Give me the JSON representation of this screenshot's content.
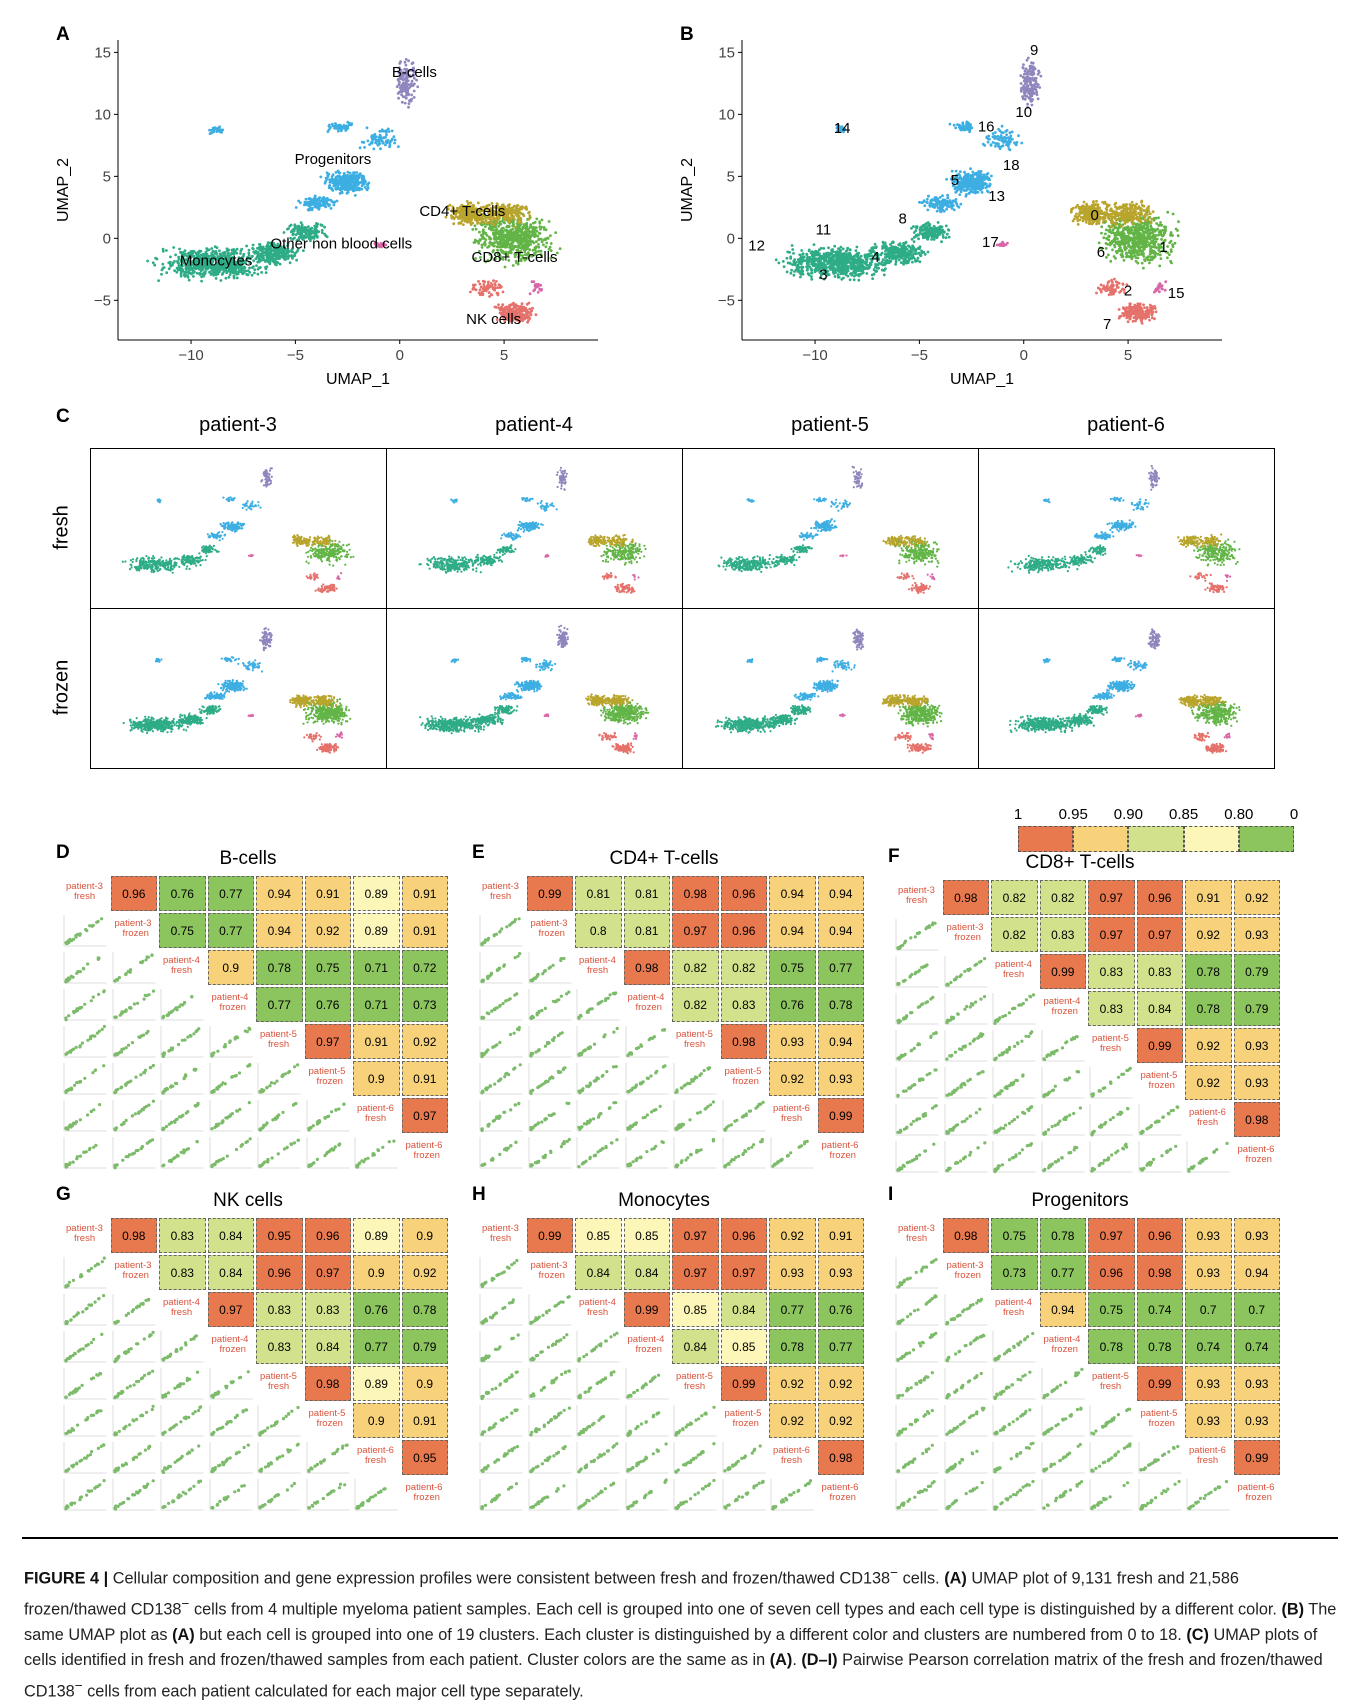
{
  "panel_a": {
    "letter": "A",
    "xlabel": "UMAP_1",
    "ylabel": "UMAP_2",
    "xticks": [
      "−10",
      "−5",
      "0",
      "5"
    ],
    "yticks": [
      "15",
      "10",
      "5",
      "0",
      "−5"
    ],
    "labels": [
      "B-cells",
      "Progenitors",
      "CD4+ T-cells",
      "Other non blood cells",
      "CD8+ T-cells",
      "Monocytes",
      "NK cells"
    ]
  },
  "panel_b": {
    "letter": "B",
    "xlabel": "UMAP_1",
    "ylabel": "UMAP_2",
    "xticks": [
      "−10",
      "−5",
      "0",
      "5"
    ],
    "yticks": [
      "15",
      "10",
      "5",
      "0",
      "−5"
    ],
    "clusters": [
      "0",
      "1",
      "2",
      "3",
      "4",
      "5",
      "6",
      "7",
      "8",
      "9",
      "10",
      "11",
      "12",
      "13",
      "14",
      "15",
      "16",
      "17",
      "18"
    ]
  },
  "panel_c": {
    "letter": "C",
    "patients": [
      "patient-3",
      "patient-4",
      "patient-5",
      "patient-6"
    ],
    "rows": [
      "fresh",
      "frozen"
    ]
  },
  "legend": {
    "labels": [
      "1",
      "0.95",
      "0.90",
      "0.85",
      "0.80",
      "0"
    ],
    "colors": [
      "#e8794f",
      "#f7d27a",
      "#d2e28c",
      "#fcf6b9",
      "#8cc45e"
    ]
  },
  "colors": {
    "bcell": "#8f86bd",
    "progenitor": "#3daee2",
    "cd4": "#b9a42c",
    "cd8": "#62b446",
    "monocyte": "#2eac87",
    "nk": "#e5716b",
    "other": "#d966a8",
    "scatter": "#7cbb6a"
  },
  "corr_panels": [
    {
      "letter": "D",
      "title": "B-cells",
      "values": [
        [
          0.96,
          0.76,
          0.77,
          0.94,
          0.91,
          0.89,
          0.91
        ],
        [
          0.75,
          0.77,
          0.94,
          0.92,
          0.89,
          0.91
        ],
        [
          0.9,
          0.78,
          0.75,
          0.71,
          0.72
        ],
        [
          0.77,
          0.76,
          0.71,
          0.73
        ],
        [
          0.97,
          0.91,
          0.92
        ],
        [
          0.9,
          0.91
        ],
        [
          0.97
        ]
      ]
    },
    {
      "letter": "E",
      "title": "CD4+ T-cells",
      "values": [
        [
          0.99,
          0.81,
          0.81,
          0.98,
          0.96,
          0.94,
          0.94
        ],
        [
          0.8,
          0.81,
          0.97,
          0.96,
          0.94,
          0.94
        ],
        [
          0.98,
          0.82,
          0.82,
          0.75,
          0.77
        ],
        [
          0.82,
          0.83,
          0.76,
          0.78
        ],
        [
          0.98,
          0.93,
          0.94
        ],
        [
          0.92,
          0.93
        ],
        [
          0.99
        ]
      ]
    },
    {
      "letter": "F",
      "title": "CD8+ T-cells",
      "values": [
        [
          0.98,
          0.82,
          0.82,
          0.97,
          0.96,
          0.91,
          0.92
        ],
        [
          0.82,
          0.83,
          0.97,
          0.97,
          0.92,
          0.93
        ],
        [
          0.99,
          0.83,
          0.83,
          0.78,
          0.79
        ],
        [
          0.83,
          0.84,
          0.78,
          0.79
        ],
        [
          0.99,
          0.92,
          0.93
        ],
        [
          0.92,
          0.93
        ],
        [
          0.98
        ]
      ]
    },
    {
      "letter": "G",
      "title": "NK cells",
      "values": [
        [
          0.98,
          0.83,
          0.84,
          0.95,
          0.96,
          0.89,
          0.9
        ],
        [
          0.83,
          0.84,
          0.96,
          0.97,
          0.9,
          0.92
        ],
        [
          0.97,
          0.83,
          0.83,
          0.76,
          0.78
        ],
        [
          0.83,
          0.84,
          0.77,
          0.79
        ],
        [
          0.98,
          0.89,
          0.9
        ],
        [
          0.9,
          0.91
        ],
        [
          0.95
        ]
      ]
    },
    {
      "letter": "H",
      "title": "Monocytes",
      "values": [
        [
          0.99,
          0.85,
          0.85,
          0.97,
          0.96,
          0.92,
          0.91
        ],
        [
          0.84,
          0.84,
          0.97,
          0.97,
          0.93,
          0.93
        ],
        [
          0.99,
          0.85,
          0.84,
          0.77,
          0.76
        ],
        [
          0.84,
          0.85,
          0.78,
          0.77
        ],
        [
          0.99,
          0.92,
          0.92
        ],
        [
          0.92,
          0.92
        ],
        [
          0.98
        ]
      ]
    },
    {
      "letter": "I",
      "title": "Progenitors",
      "values": [
        [
          0.98,
          0.75,
          0.78,
          0.97,
          0.96,
          0.93,
          0.93
        ],
        [
          0.73,
          0.77,
          0.96,
          0.98,
          0.93,
          0.94
        ],
        [
          0.94,
          0.75,
          0.74,
          0.7,
          0.7
        ],
        [
          0.78,
          0.78,
          0.74,
          0.74
        ],
        [
          0.99,
          0.93,
          0.93
        ],
        [
          0.93,
          0.93
        ],
        [
          0.99
        ]
      ]
    }
  ],
  "diag_labels": [
    [
      "patient-3",
      "fresh"
    ],
    [
      "patient-3",
      "frozen"
    ],
    [
      "patient-4",
      "fresh"
    ],
    [
      "patient-4",
      "frozen"
    ],
    [
      "patient-5",
      "fresh"
    ],
    [
      "patient-5",
      "frozen"
    ],
    [
      "patient-6",
      "fresh"
    ],
    [
      "patient-6",
      "frozen"
    ]
  ],
  "caption": {
    "fig": "FIGURE 4 |",
    "intro": " Cellular composition and gene expression profiles were consistent between fresh and frozen/thawed CD138",
    "minus": "−",
    "intro2": " cells. ",
    "a_lbl": "(A)",
    "a_txt": " UMAP plot of 9,131 fresh and 21,586 frozen/thawed CD138",
    "a_txt2": " cells from 4 multiple myeloma patient samples. Each cell is grouped into one of seven cell types and each cell type is distinguished by a different color. ",
    "b_lbl": "(B)",
    "b_txt": " The same UMAP plot as ",
    "b_ref": "(A)",
    "b_txt2": " but each cell is grouped into one of 19 clusters. Each cluster is distinguished by a different color and clusters are numbered from 0 to 18. ",
    "c_lbl": "(C)",
    "c_txt": " UMAP plots of cells identified in fresh and frozen/thawed samples from each patient. Cluster colors are the same as in ",
    "c_ref": "(A)",
    "c_txt2": ". ",
    "di_lbl": "(D–I)",
    "di_txt": " Pairwise Pearson correlation matrix of the fresh and frozen/thawed CD138",
    "di_txt2": " cells from each patient calculated for each major cell type separately."
  }
}
